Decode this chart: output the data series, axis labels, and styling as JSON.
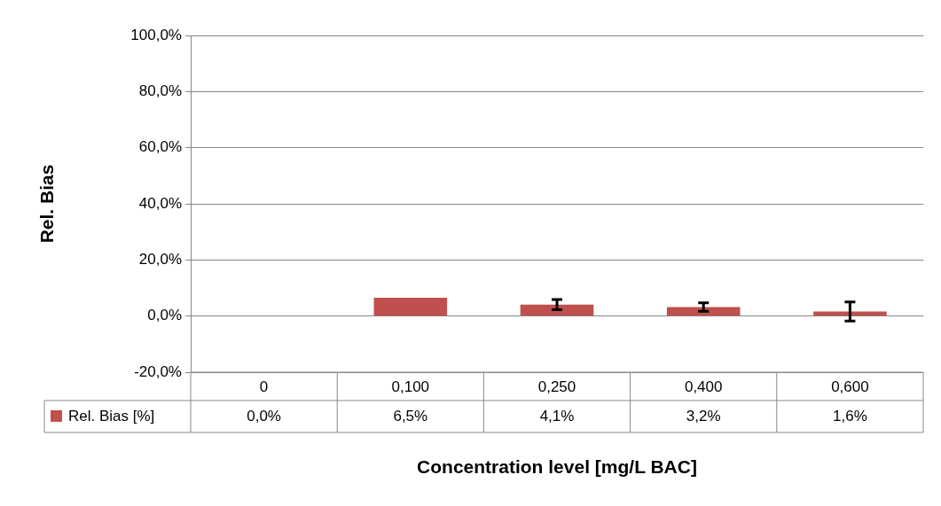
{
  "chart_data": {
    "type": "bar",
    "xlabel": "Concentration level [mg/L BAC]",
    "ylabel": "Rel. Bias",
    "categories": [
      "0",
      "0,100",
      "0,250",
      "0,400",
      "0,600"
    ],
    "series": [
      {
        "name": "Rel. Bias [%]",
        "color": "#c0504d",
        "values": [
          0,
          6.5,
          4.1,
          3.2,
          1.6
        ],
        "errors": [
          null,
          null,
          1.8,
          1.5,
          3.4
        ],
        "value_labels": [
          "0,0%",
          "6,5%",
          "4,1%",
          "3,2%",
          "1,6%"
        ]
      }
    ],
    "ylim": [
      -20,
      100
    ],
    "yticks": [
      {
        "value": -20,
        "label": "-20,0%"
      },
      {
        "value": 0,
        "label": "0,0%"
      },
      {
        "value": 20,
        "label": "20,0%"
      },
      {
        "value": 40,
        "label": "40,0%"
      },
      {
        "value": 60,
        "label": "60,0%"
      },
      {
        "value": 80,
        "label": "80,0%"
      },
      {
        "value": 100,
        "label": "100,0%"
      }
    ],
    "grid": "y"
  }
}
